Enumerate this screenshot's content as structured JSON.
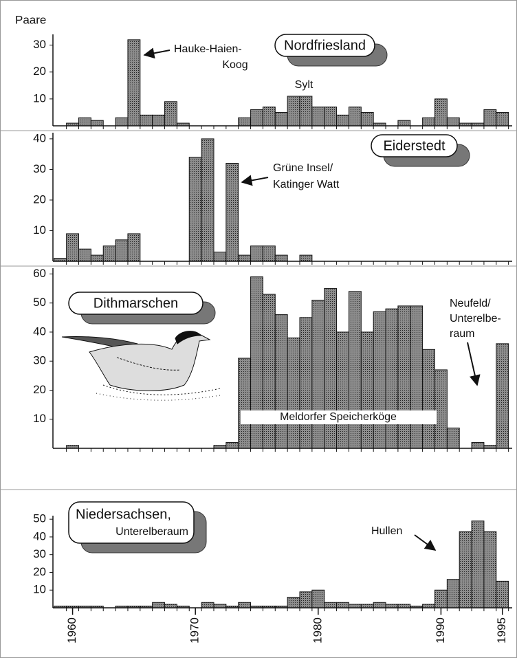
{
  "chart_data": [
    {
      "type": "bar",
      "title": "Nordfriesland",
      "y_label": "Paare",
      "color": "#8c8c8c",
      "x": [
        1959,
        1960,
        1961,
        1962,
        1963,
        1964,
        1965,
        1966,
        1967,
        1968,
        1969,
        1970,
        1971,
        1972,
        1973,
        1974,
        1975,
        1976,
        1977,
        1978,
        1979,
        1980,
        1981,
        1982,
        1983,
        1984,
        1985,
        1986,
        1987,
        1988,
        1989,
        1990,
        1991,
        1992,
        1993,
        1994,
        1995
      ],
      "values": [
        0,
        1,
        3,
        2,
        0,
        3,
        32,
        4,
        4,
        9,
        1,
        0,
        0,
        0,
        0,
        3,
        6,
        7,
        5,
        11,
        11,
        7,
        7,
        4,
        7,
        5,
        1,
        0,
        2,
        0,
        3,
        10,
        3,
        1,
        1,
        6,
        5
      ],
      "xlim": [
        1958.4,
        1995.8
      ],
      "ylim": [
        0,
        34
      ],
      "yticks": [
        10,
        20,
        30
      ],
      "annotations": [
        [
          "Hauke-Haien-",
          "Koog"
        ],
        [
          "Sylt"
        ]
      ]
    },
    {
      "type": "bar",
      "title": "Eiderstedt",
      "color": "#8c8c8c",
      "x": [
        1959,
        1960,
        1961,
        1962,
        1963,
        1964,
        1965,
        1966,
        1967,
        1968,
        1969,
        1970,
        1971,
        1972,
        1973,
        1974,
        1975,
        1976,
        1977,
        1978,
        1979,
        1980,
        1981,
        1982,
        1983,
        1984,
        1985,
        1986,
        1987,
        1988,
        1989,
        1990,
        1991,
        1992,
        1993,
        1994,
        1995
      ],
      "values": [
        1,
        9,
        4,
        2,
        5,
        7,
        9,
        0,
        0,
        0,
        0,
        34,
        40,
        3,
        32,
        2,
        5,
        5,
        2,
        0,
        2,
        0,
        0,
        0,
        0,
        0,
        0,
        0,
        0,
        0,
        0,
        0,
        0,
        0,
        0,
        0,
        0
      ],
      "xlim": [
        1958.4,
        1995.8
      ],
      "ylim": [
        0,
        42
      ],
      "yticks": [
        10,
        20,
        30,
        40
      ],
      "annotations": [
        [
          "Grüne Insel/",
          "Katinger Watt"
        ]
      ]
    },
    {
      "type": "bar",
      "title": "Dithmarschen",
      "color": "#8c8c8c",
      "x": [
        1959,
        1960,
        1961,
        1962,
        1963,
        1964,
        1965,
        1966,
        1967,
        1968,
        1969,
        1970,
        1971,
        1972,
        1973,
        1974,
        1975,
        1976,
        1977,
        1978,
        1979,
        1980,
        1981,
        1982,
        1983,
        1984,
        1985,
        1986,
        1987,
        1988,
        1989,
        1990,
        1991,
        1992,
        1993,
        1994,
        1995
      ],
      "values": [
        0,
        1,
        0,
        0,
        0,
        0,
        0,
        0,
        0,
        0,
        0,
        0,
        0,
        1,
        2,
        31,
        59,
        53,
        46,
        38,
        45,
        51,
        55,
        40,
        54,
        40,
        47,
        48,
        49,
        49,
        34,
        27,
        7,
        0,
        2,
        1,
        36
      ],
      "xlim": [
        1958.4,
        1995.8
      ],
      "ylim": [
        0,
        62
      ],
      "yticks": [
        10,
        20,
        30,
        40,
        50,
        60
      ],
      "annotations": [
        [
          "Meldorfer Speicherköge"
        ],
        [
          "Neufeld/",
          "Unterelbe-",
          "raum"
        ]
      ]
    },
    {
      "type": "bar",
      "title": "Niedersachsen,",
      "subtitle": "Unterelberaum",
      "color": "#8c8c8c",
      "x": [
        1959,
        1960,
        1961,
        1962,
        1963,
        1964,
        1965,
        1966,
        1967,
        1968,
        1969,
        1970,
        1971,
        1972,
        1973,
        1974,
        1975,
        1976,
        1977,
        1978,
        1979,
        1980,
        1981,
        1982,
        1983,
        1984,
        1985,
        1986,
        1987,
        1988,
        1989,
        1990,
        1991,
        1992,
        1993,
        1994,
        1995
      ],
      "values": [
        1,
        1,
        1,
        1,
        0,
        1,
        1,
        1,
        3,
        2,
        1,
        0,
        3,
        2,
        1,
        3,
        1,
        1,
        1,
        6,
        9,
        10,
        3,
        3,
        2,
        2,
        3,
        2,
        2,
        1,
        2,
        10,
        16,
        43,
        49,
        43,
        15
      ],
      "xlim": [
        1958.4,
        1995.8
      ],
      "ylim": [
        0,
        52
      ],
      "yticks": [
        10,
        20,
        30,
        40,
        50
      ],
      "xticks": [
        1960,
        1970,
        1980,
        1990,
        1995
      ],
      "annotations": [
        [
          "Hullen"
        ]
      ]
    }
  ]
}
